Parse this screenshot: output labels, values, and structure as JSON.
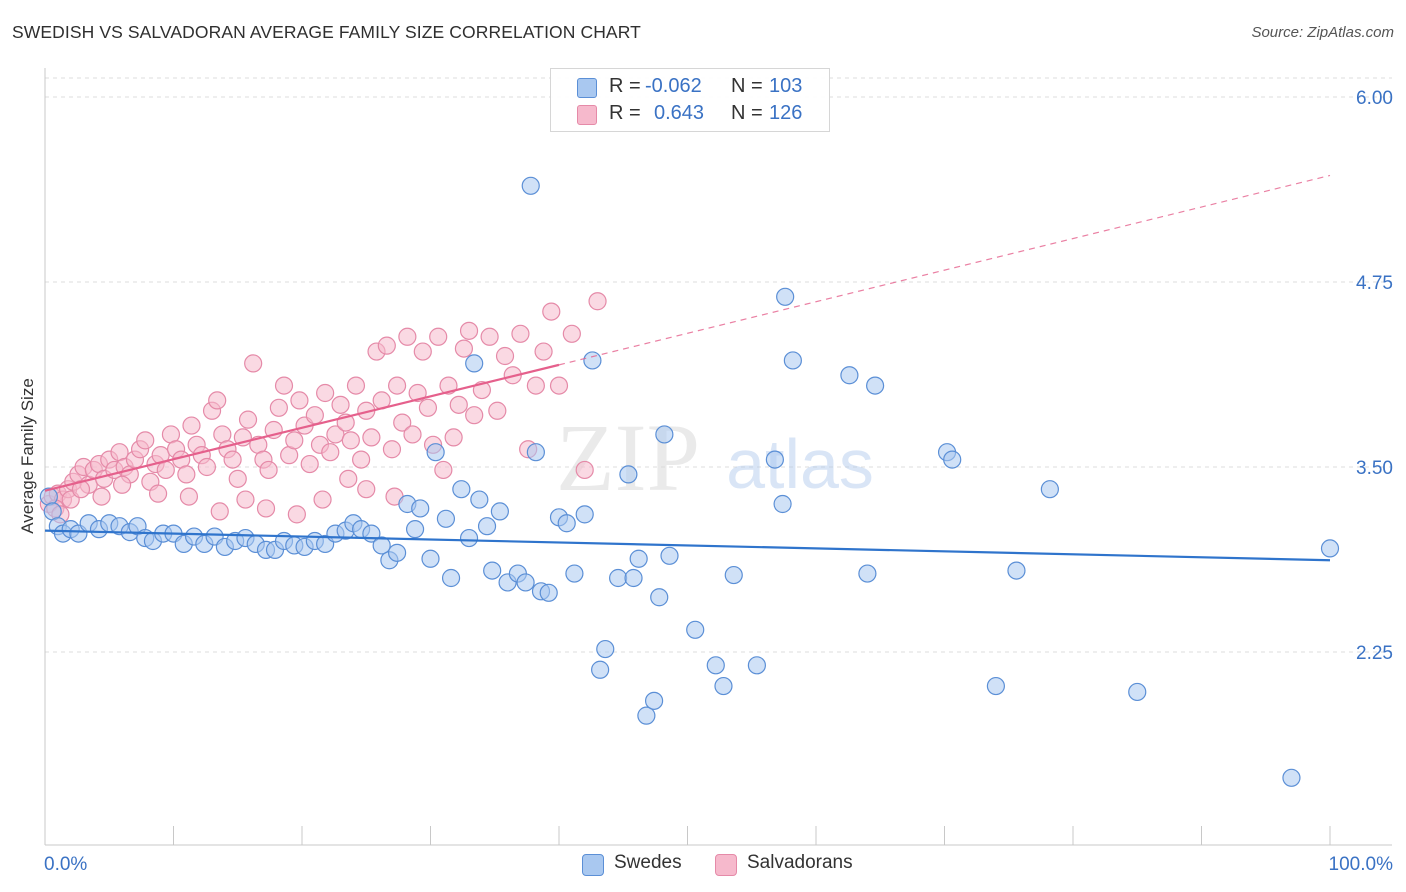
{
  "title": "SWEDISH VS SALVADORAN AVERAGE FAMILY SIZE CORRELATION CHART",
  "source": "Source: ZipAtlas.com",
  "watermark": {
    "zip": "ZIP",
    "atlas": "atlas"
  },
  "colors": {
    "blue_fill": "#a9c8f0",
    "blue_stroke": "#5b8fd6",
    "blue_line": "#2f74cc",
    "pink_fill": "#f6b9cc",
    "pink_stroke": "#e58aa8",
    "pink_line": "#e5608c",
    "axis_text": "#3a72c4",
    "grid": "#dddddd"
  },
  "stats": [
    {
      "r_label": "R =",
      "r_value": "-0.062",
      "n_label": "N =",
      "n_value": "103",
      "color": "blue"
    },
    {
      "r_label": "R =",
      "r_value": "0.643",
      "n_label": "N =",
      "n_value": "126",
      "color": "pink"
    }
  ],
  "legend": [
    {
      "label": "Swedes",
      "color": "blue"
    },
    {
      "label": "Salvadorans",
      "color": "pink"
    }
  ],
  "chart_data": {
    "type": "scatter",
    "title": "SWEDISH VS SALVADORAN AVERAGE FAMILY SIZE CORRELATION CHART",
    "xlabel": "",
    "ylabel": "Average Family Size",
    "x_tick_labels": [
      "0.0%",
      "100.0%"
    ],
    "y_tick_labels": [
      "2.25",
      "3.50",
      "4.75",
      "6.00"
    ],
    "y_ticks": [
      2.25,
      3.5,
      4.75,
      6.0
    ],
    "xlim": [
      0,
      100
    ],
    "ylim": [
      0.95,
      6.15
    ],
    "grid": true,
    "legend_position": "bottom-center",
    "series": [
      {
        "name": "Swedes",
        "color": "blue",
        "trend": {
          "x0": 0,
          "y0": 3.07,
          "x1": 100,
          "y1": 2.87,
          "dashed_to": 100
        },
        "points": [
          [
            0.3,
            3.3
          ],
          [
            0.6,
            3.2
          ],
          [
            1.0,
            3.1
          ],
          [
            1.4,
            3.05
          ],
          [
            2.0,
            3.08
          ],
          [
            2.6,
            3.05
          ],
          [
            3.4,
            3.12
          ],
          [
            4.2,
            3.08
          ],
          [
            5.0,
            3.12
          ],
          [
            5.8,
            3.1
          ],
          [
            6.6,
            3.06
          ],
          [
            7.2,
            3.1
          ],
          [
            7.8,
            3.02
          ],
          [
            8.4,
            3.0
          ],
          [
            9.2,
            3.05
          ],
          [
            10.0,
            3.05
          ],
          [
            10.8,
            2.98
          ],
          [
            11.6,
            3.03
          ],
          [
            12.4,
            2.98
          ],
          [
            13.2,
            3.03
          ],
          [
            14.0,
            2.96
          ],
          [
            14.8,
            3.0
          ],
          [
            15.6,
            3.02
          ],
          [
            16.4,
            2.98
          ],
          [
            17.2,
            2.94
          ],
          [
            17.9,
            2.94
          ],
          [
            18.6,
            3.0
          ],
          [
            19.4,
            2.97
          ],
          [
            20.2,
            2.96
          ],
          [
            21.0,
            3.0
          ],
          [
            21.8,
            2.98
          ],
          [
            22.6,
            3.05
          ],
          [
            23.4,
            3.07
          ],
          [
            24.0,
            3.12
          ],
          [
            24.6,
            3.08
          ],
          [
            25.4,
            3.05
          ],
          [
            26.2,
            2.97
          ],
          [
            26.8,
            2.87
          ],
          [
            27.4,
            2.92
          ],
          [
            28.2,
            3.25
          ],
          [
            28.8,
            3.08
          ],
          [
            29.2,
            3.22
          ],
          [
            30.0,
            2.88
          ],
          [
            30.4,
            3.6
          ],
          [
            31.2,
            3.15
          ],
          [
            31.6,
            2.75
          ],
          [
            32.4,
            3.35
          ],
          [
            33.0,
            3.02
          ],
          [
            33.4,
            4.2
          ],
          [
            33.8,
            3.28
          ],
          [
            34.4,
            3.1
          ],
          [
            34.8,
            2.8
          ],
          [
            35.4,
            3.2
          ],
          [
            36.0,
            2.72
          ],
          [
            36.8,
            2.78
          ],
          [
            37.4,
            2.72
          ],
          [
            37.8,
            5.4
          ],
          [
            38.2,
            3.6
          ],
          [
            38.6,
            2.66
          ],
          [
            39.2,
            2.65
          ],
          [
            40.0,
            3.16
          ],
          [
            40.6,
            3.12
          ],
          [
            41.2,
            2.78
          ],
          [
            42.0,
            3.18
          ],
          [
            42.6,
            4.22
          ],
          [
            43.2,
            2.13
          ],
          [
            43.6,
            2.27
          ],
          [
            44.6,
            2.75
          ],
          [
            45.4,
            3.45
          ],
          [
            45.8,
            2.75
          ],
          [
            46.2,
            2.88
          ],
          [
            46.8,
            1.82
          ],
          [
            47.4,
            1.92
          ],
          [
            47.8,
            2.62
          ],
          [
            48.2,
            3.72
          ],
          [
            48.6,
            2.9
          ],
          [
            50.6,
            2.4
          ],
          [
            52.2,
            2.16
          ],
          [
            52.8,
            2.02
          ],
          [
            53.6,
            2.77
          ],
          [
            55.4,
            2.16
          ],
          [
            56.8,
            3.55
          ],
          [
            57.4,
            3.25
          ],
          [
            57.6,
            4.65
          ],
          [
            58.2,
            4.22
          ],
          [
            62.6,
            4.12
          ],
          [
            64.0,
            2.78
          ],
          [
            64.6,
            4.05
          ],
          [
            70.2,
            3.6
          ],
          [
            70.6,
            3.55
          ],
          [
            74.0,
            2.02
          ],
          [
            75.6,
            2.8
          ],
          [
            78.2,
            3.35
          ],
          [
            85.0,
            1.98
          ],
          [
            97.0,
            1.4
          ],
          [
            100.0,
            2.95
          ]
        ]
      },
      {
        "name": "Salvadorans",
        "color": "pink",
        "trend": {
          "x0": 0,
          "y0": 3.34,
          "x1": 40,
          "y1": 4.19,
          "dashed_to": 100,
          "y_dashed_end": 5.47
        },
        "points": [
          [
            0.3,
            3.25
          ],
          [
            0.6,
            3.3
          ],
          [
            1.0,
            3.32
          ],
          [
            1.4,
            3.28
          ],
          [
            1.8,
            3.35
          ],
          [
            2.2,
            3.4
          ],
          [
            2.6,
            3.45
          ],
          [
            3.0,
            3.5
          ],
          [
            3.4,
            3.38
          ],
          [
            3.8,
            3.48
          ],
          [
            4.2,
            3.52
          ],
          [
            4.6,
            3.42
          ],
          [
            5.0,
            3.55
          ],
          [
            5.4,
            3.48
          ],
          [
            5.8,
            3.6
          ],
          [
            6.2,
            3.5
          ],
          [
            6.6,
            3.45
          ],
          [
            7.0,
            3.55
          ],
          [
            7.4,
            3.62
          ],
          [
            7.8,
            3.68
          ],
          [
            8.2,
            3.4
          ],
          [
            8.6,
            3.52
          ],
          [
            9.0,
            3.58
          ],
          [
            9.4,
            3.48
          ],
          [
            9.8,
            3.72
          ],
          [
            10.2,
            3.62
          ],
          [
            10.6,
            3.55
          ],
          [
            11.0,
            3.45
          ],
          [
            11.4,
            3.78
          ],
          [
            11.8,
            3.65
          ],
          [
            12.2,
            3.58
          ],
          [
            12.6,
            3.5
          ],
          [
            13.0,
            3.88
          ],
          [
            13.4,
            3.95
          ],
          [
            13.8,
            3.72
          ],
          [
            14.2,
            3.62
          ],
          [
            14.6,
            3.55
          ],
          [
            15.0,
            3.42
          ],
          [
            15.4,
            3.7
          ],
          [
            15.8,
            3.82
          ],
          [
            16.2,
            4.2
          ],
          [
            16.6,
            3.65
          ],
          [
            17.0,
            3.55
          ],
          [
            17.4,
            3.48
          ],
          [
            17.8,
            3.75
          ],
          [
            18.2,
            3.9
          ],
          [
            18.6,
            4.05
          ],
          [
            19.0,
            3.58
          ],
          [
            19.4,
            3.68
          ],
          [
            19.8,
            3.95
          ],
          [
            20.2,
            3.78
          ],
          [
            20.6,
            3.52
          ],
          [
            21.0,
            3.85
          ],
          [
            21.4,
            3.65
          ],
          [
            21.8,
            4.0
          ],
          [
            22.2,
            3.6
          ],
          [
            22.6,
            3.72
          ],
          [
            23.0,
            3.92
          ],
          [
            23.4,
            3.8
          ],
          [
            23.8,
            3.68
          ],
          [
            24.2,
            4.05
          ],
          [
            24.6,
            3.55
          ],
          [
            25.0,
            3.88
          ],
          [
            25.4,
            3.7
          ],
          [
            25.8,
            4.28
          ],
          [
            26.2,
            3.95
          ],
          [
            26.6,
            4.32
          ],
          [
            27.0,
            3.62
          ],
          [
            27.4,
            4.05
          ],
          [
            27.8,
            3.8
          ],
          [
            28.2,
            4.38
          ],
          [
            28.6,
            3.72
          ],
          [
            29.0,
            4.0
          ],
          [
            29.4,
            4.28
          ],
          [
            29.8,
            3.9
          ],
          [
            30.2,
            3.65
          ],
          [
            30.6,
            4.38
          ],
          [
            31.0,
            3.48
          ],
          [
            31.4,
            4.05
          ],
          [
            31.8,
            3.7
          ],
          [
            32.2,
            3.92
          ],
          [
            32.6,
            4.3
          ],
          [
            33.0,
            4.42
          ],
          [
            33.4,
            3.85
          ],
          [
            34.0,
            4.02
          ],
          [
            34.6,
            4.38
          ],
          [
            35.2,
            3.88
          ],
          [
            35.8,
            4.25
          ],
          [
            36.4,
            4.12
          ],
          [
            37.0,
            4.4
          ],
          [
            37.6,
            3.62
          ],
          [
            38.2,
            4.05
          ],
          [
            38.8,
            4.28
          ],
          [
            39.4,
            4.55
          ],
          [
            40.0,
            4.05
          ],
          [
            41.0,
            4.4
          ],
          [
            42.0,
            3.48
          ],
          [
            43.0,
            4.62
          ],
          [
            0.8,
            3.22
          ],
          [
            1.2,
            3.18
          ],
          [
            2.0,
            3.28
          ],
          [
            2.8,
            3.35
          ],
          [
            4.4,
            3.3
          ],
          [
            6.0,
            3.38
          ],
          [
            8.8,
            3.32
          ],
          [
            11.2,
            3.3
          ],
          [
            13.6,
            3.2
          ],
          [
            15.6,
            3.28
          ],
          [
            17.2,
            3.22
          ],
          [
            19.6,
            3.18
          ],
          [
            21.6,
            3.28
          ],
          [
            23.6,
            3.42
          ],
          [
            25.0,
            3.35
          ],
          [
            27.2,
            3.3
          ]
        ]
      }
    ]
  }
}
